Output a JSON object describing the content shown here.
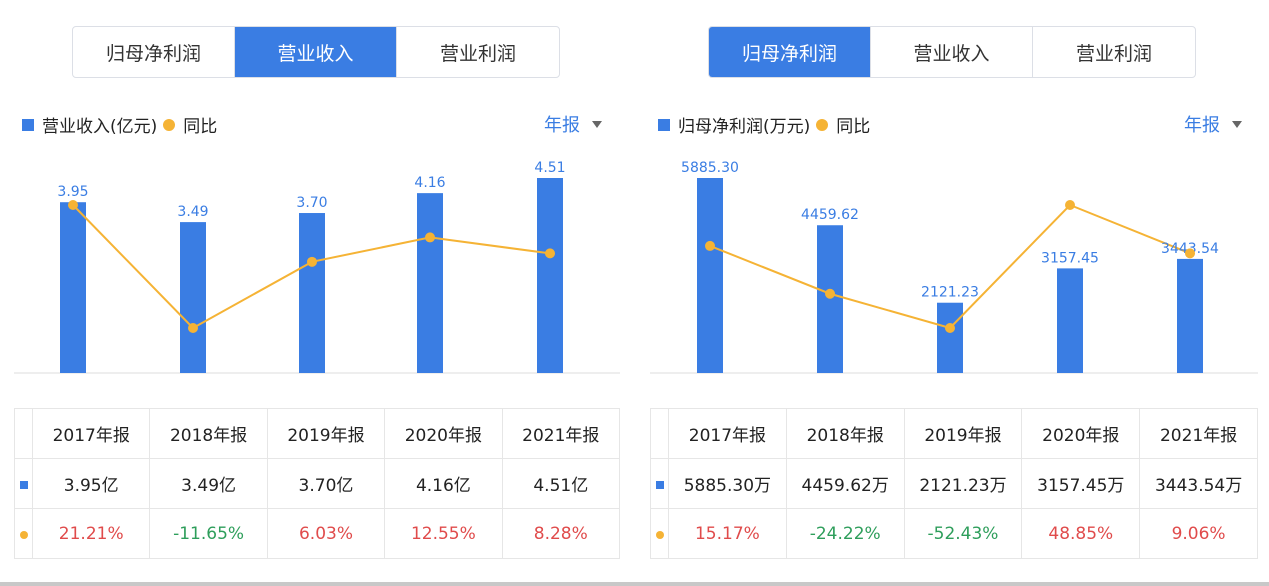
{
  "tabs": [
    "归母净利润",
    "营业收入",
    "营业利润"
  ],
  "period": "年报",
  "colors": {
    "bar": "#3a7de3",
    "line": "#f5b335",
    "positive": "#e04b4b",
    "negative": "#2e9e5b"
  },
  "left": {
    "legend": {
      "series1": "营业收入(亿元)",
      "series2": "同比"
    },
    "years": [
      "2017年报",
      "2018年报",
      "2019年报",
      "2020年报",
      "2021年报"
    ],
    "value_cells": [
      "3.95亿",
      "3.49亿",
      "3.70亿",
      "4.16亿",
      "4.51亿"
    ],
    "yoy_cells": [
      "21.21%",
      "-11.65%",
      "6.03%",
      "12.55%",
      "8.28%"
    ]
  },
  "right": {
    "legend": {
      "series1": "归母净利润(万元)",
      "series2": "同比"
    },
    "years": [
      "2017年报",
      "2018年报",
      "2019年报",
      "2020年报",
      "2021年报"
    ],
    "value_cells": [
      "5885.30万",
      "4459.62万",
      "2121.23万",
      "3157.45万",
      "3443.54万"
    ],
    "yoy_cells": [
      "15.17%",
      "-24.22%",
      "-52.43%",
      "48.85%",
      "9.06%"
    ]
  },
  "chart_data": [
    {
      "type": "bar",
      "categories": [
        "2017年报",
        "2018年报",
        "2019年报",
        "2020年报",
        "2021年报"
      ],
      "series": [
        {
          "name": "营业收入(亿元)",
          "type": "bar",
          "values": [
            3.95,
            3.49,
            3.7,
            4.16,
            4.51
          ],
          "labels": [
            "3.95",
            "3.49",
            "3.70",
            "4.16",
            "4.51"
          ]
        },
        {
          "name": "同比",
          "type": "line",
          "values": [
            21.21,
            -11.65,
            6.03,
            12.55,
            8.28
          ]
        }
      ],
      "legend_position": "top-left",
      "grid": false
    },
    {
      "type": "bar",
      "categories": [
        "2017年报",
        "2018年报",
        "2019年报",
        "2020年报",
        "2021年报"
      ],
      "series": [
        {
          "name": "归母净利润(万元)",
          "type": "bar",
          "values": [
            5885.3,
            4459.62,
            2121.23,
            3157.45,
            3443.54
          ],
          "labels": [
            "5885.30",
            "4459.62",
            "2121.23",
            "3157.45",
            "3443.54"
          ]
        },
        {
          "name": "同比",
          "type": "line",
          "values": [
            15.17,
            -24.22,
            -52.43,
            48.85,
            9.06
          ]
        }
      ],
      "legend_position": "top-left",
      "grid": false
    }
  ]
}
